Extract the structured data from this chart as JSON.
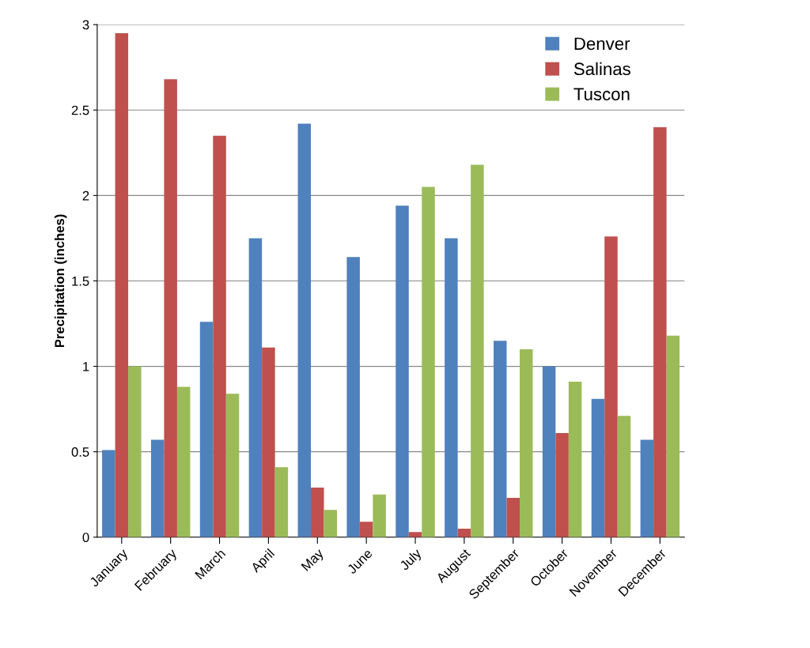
{
  "chart_data": {
    "type": "bar",
    "ylabel": "Precipitation (inches)",
    "categories": [
      "January",
      "February",
      "March",
      "April",
      "May",
      "June",
      "July",
      "August",
      "September",
      "October",
      "November",
      "December"
    ],
    "series": [
      {
        "name": "Denver",
        "color": "#4f81bd",
        "values": [
          0.51,
          0.57,
          1.26,
          1.75,
          2.42,
          1.64,
          1.94,
          1.75,
          1.15,
          1.0,
          0.81,
          0.57
        ]
      },
      {
        "name": "Salinas",
        "color": "#c0504d",
        "values": [
          2.95,
          2.68,
          2.35,
          1.11,
          0.29,
          0.09,
          0.03,
          0.05,
          0.23,
          0.61,
          1.76,
          2.4
        ]
      },
      {
        "name": "Tuscon",
        "color": "#9bbb59",
        "values": [
          1.0,
          0.88,
          0.84,
          0.41,
          0.16,
          0.25,
          2.05,
          2.18,
          1.1,
          0.91,
          0.71,
          1.18
        ]
      }
    ],
    "ylim": [
      0,
      3
    ],
    "yticks": [
      0,
      0.5,
      1,
      1.5,
      2,
      2.5,
      3
    ],
    "grid": "y",
    "legend": "top right"
  }
}
